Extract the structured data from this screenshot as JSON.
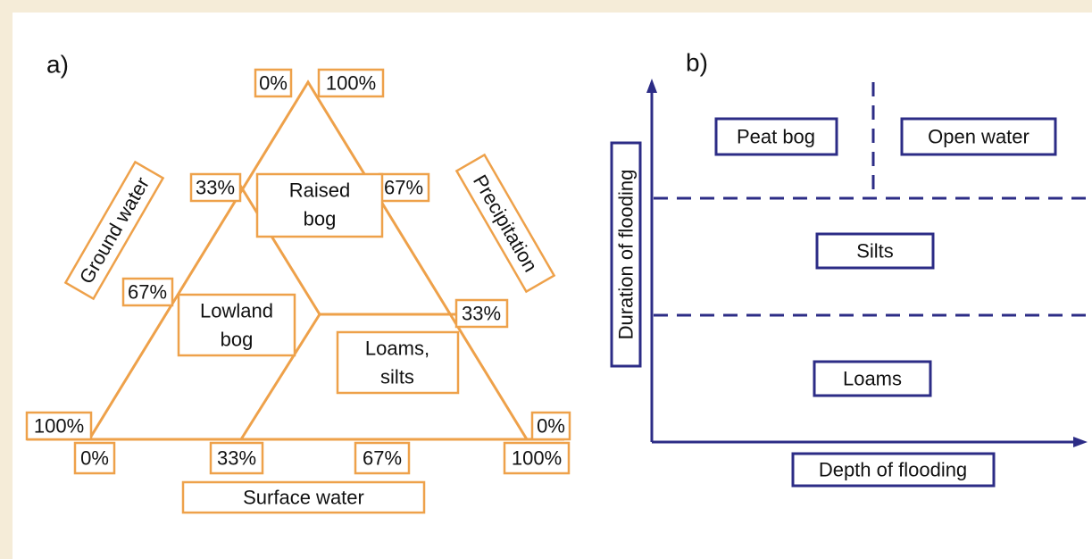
{
  "panel_a": {
    "label": "a)",
    "axis_labels": [
      "Ground water",
      "Precipitation",
      "Surface water"
    ],
    "percent_labels": [
      "0%",
      "100%",
      "33%",
      "67%",
      "67%",
      "33%",
      "100%",
      "0%",
      "0%",
      "33%",
      "67%",
      "100%"
    ],
    "zones": [
      {
        "lines": [
          "Raised",
          "bog"
        ]
      },
      {
        "lines": [
          "Lowland",
          "bog"
        ]
      },
      {
        "lines": [
          "Loams,",
          "silts"
        ]
      }
    ]
  },
  "panel_b": {
    "label": "b)",
    "y_axis": "Duration of flooding",
    "x_axis": "Depth of flooding",
    "zones": [
      "Peat bog",
      "Open water",
      "Silts",
      "Loams"
    ]
  }
}
